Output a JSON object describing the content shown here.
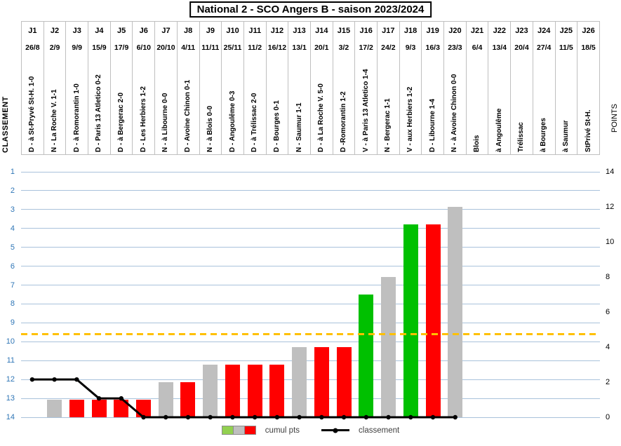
{
  "title": "National 2 - SCO Angers B - saison 2023/2024",
  "axes": {
    "left_label": "CLASSEMENT",
    "right_label": "POINTS",
    "left_ticks": [
      1,
      2,
      3,
      4,
      5,
      6,
      7,
      8,
      9,
      10,
      11,
      12,
      13,
      14
    ],
    "right_ticks": [
      14,
      12,
      10,
      8,
      6,
      4,
      2,
      0
    ]
  },
  "legend": {
    "bars_label": "cumul pts",
    "line_label": "classement",
    "swatch_colors": [
      "#92D050",
      "#BFBFBF",
      "#FF0000"
    ]
  },
  "colors": {
    "win_bar": "#00C000",
    "draw_bar": "#BFBFBF",
    "loss_bar": "#FF0000",
    "line": "#000000",
    "threshold_line": "#FFC000",
    "axis_blue": "#2E75B6",
    "gridline": "#A9C2DB"
  },
  "chart_data": {
    "type": "bar+line",
    "title": "National 2 - SCO Angers B - saison 2023/2024",
    "left_axis": {
      "label": "CLASSEMENT",
      "range": [
        1,
        14
      ],
      "inverted": true
    },
    "right_axis": {
      "label": "POINTS",
      "range": [
        0,
        14
      ]
    },
    "grid": true,
    "threshold_points": 4.75,
    "series_bars_name": "cumul pts",
    "series_line_name": "classement",
    "matchdays": [
      {
        "day": "J1",
        "date": "26/8",
        "label": "D - à St-Pryvé St-H. 1-0",
        "result": "D",
        "points": 0,
        "classement": 12
      },
      {
        "day": "J2",
        "date": "2/9",
        "label": "N - La Roche V. 1-1",
        "result": "N",
        "points": 1,
        "classement": 12
      },
      {
        "day": "J3",
        "date": "9/9",
        "label": "D - à Romorantin 1-0",
        "result": "D",
        "points": 1,
        "classement": 12
      },
      {
        "day": "J4",
        "date": "15/9",
        "label": "D - Paris 13 Atletico 0-2",
        "result": "D",
        "points": 1,
        "classement": 13
      },
      {
        "day": "J5",
        "date": "17/9",
        "label": "D - à Bergerac 2-0",
        "result": "D",
        "points": 1,
        "classement": 13
      },
      {
        "day": "J6",
        "date": "6/10",
        "label": "D - Les Herbiers 1-2",
        "result": "D",
        "points": 1,
        "classement": 14
      },
      {
        "day": "J7",
        "date": "20/10",
        "label": "N - à Libourne 0-0",
        "result": "N",
        "points": 2,
        "classement": 14
      },
      {
        "day": "J8",
        "date": "4/11",
        "label": "D - Avoine Chinon 0-1",
        "result": "D",
        "points": 2,
        "classement": 14
      },
      {
        "day": "J9",
        "date": "11/11",
        "label": "N - à Blois 0-0",
        "result": "N",
        "points": 3,
        "classement": 14
      },
      {
        "day": "J10",
        "date": "25/11",
        "label": "D - Angoulême 0-3",
        "result": "D",
        "points": 3,
        "classement": 14
      },
      {
        "day": "J11",
        "date": "11/2",
        "label": "D - à Trélissac 2-0",
        "result": "D",
        "points": 3,
        "classement": 14
      },
      {
        "day": "J12",
        "date": "16/12",
        "label": "D - Bourges 0-1",
        "result": "D",
        "points": 3,
        "classement": 14
      },
      {
        "day": "J13",
        "date": "13/1",
        "label": "N - Saumur 1-1",
        "result": "N",
        "points": 4,
        "classement": 14
      },
      {
        "day": "J14",
        "date": "20/1",
        "label": "D - à La Roche V. 5-0",
        "result": "D",
        "points": 4,
        "classement": 14
      },
      {
        "day": "J15",
        "date": "3/2",
        "label": "D -Romorantin 1-2",
        "result": "D",
        "points": 4,
        "classement": 14
      },
      {
        "day": "J16",
        "date": "17/2",
        "label": "V - à Paris 13 Atletico 1-4",
        "result": "V",
        "points": 7,
        "classement": 14
      },
      {
        "day": "J17",
        "date": "24/2",
        "label": "N - Bergerac 1-1",
        "result": "N",
        "points": 8,
        "classement": 14
      },
      {
        "day": "J18",
        "date": "9/3",
        "label": "V - aux Herbiers 1-2",
        "result": "V",
        "points": 11,
        "classement": 14
      },
      {
        "day": "J19",
        "date": "16/3",
        "label": "D - Libourne 1-4",
        "result": "D",
        "points": 11,
        "classement": 14
      },
      {
        "day": "J20",
        "date": "23/3",
        "label": "N - à Avoine Chinon 0-0",
        "result": "N",
        "points": 12,
        "classement": 14
      },
      {
        "day": "J21",
        "date": "6/4",
        "label": "Blois",
        "result": null,
        "points": null,
        "classement": null
      },
      {
        "day": "J22",
        "date": "13/4",
        "label": "à Angoulême",
        "result": null,
        "points": null,
        "classement": null
      },
      {
        "day": "J23",
        "date": "20/4",
        "label": "Trélissac",
        "result": null,
        "points": null,
        "classement": null
      },
      {
        "day": "J24",
        "date": "27/4",
        "label": "à Bourges",
        "result": null,
        "points": null,
        "classement": null
      },
      {
        "day": "J25",
        "date": "11/5",
        "label": "à Saumur",
        "result": null,
        "points": null,
        "classement": null
      },
      {
        "day": "J26",
        "date": "18/5",
        "label": "StPrivé St-H.",
        "result": null,
        "points": null,
        "classement": null
      }
    ]
  }
}
